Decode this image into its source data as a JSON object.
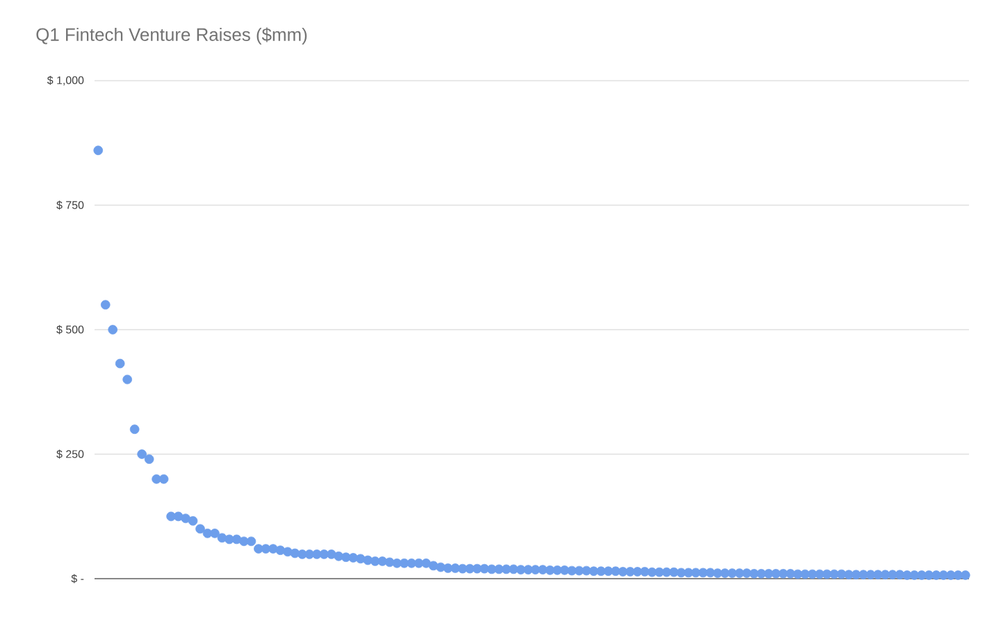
{
  "chart_data": {
    "type": "scatter",
    "title": "Q1 Fintech Venture Raises ($mm)",
    "categories": [
      null,
      null,
      null,
      null,
      null,
      null,
      null,
      null,
      null,
      null,
      null,
      null,
      null,
      null,
      null,
      null,
      null,
      null,
      null,
      null,
      null,
      null,
      null,
      null,
      null,
      null,
      null,
      null,
      null,
      null,
      null,
      null,
      null,
      null,
      null,
      null,
      null,
      null,
      null,
      null,
      null,
      null,
      null,
      null,
      null,
      null,
      null,
      null,
      null,
      null,
      null,
      null,
      null,
      null,
      null,
      null,
      null,
      null,
      null,
      null,
      null,
      null,
      null,
      null,
      null,
      null,
      null,
      null,
      null,
      null,
      null,
      null,
      null,
      null,
      null,
      null,
      null,
      null,
      null,
      null,
      null,
      null,
      null,
      null,
      null,
      null,
      null,
      null,
      null,
      null,
      null,
      null,
      null,
      null,
      null,
      null,
      null,
      null,
      null,
      null,
      null,
      null,
      null,
      null,
      null,
      null,
      null,
      null,
      null,
      null,
      null,
      null,
      null,
      null,
      null,
      null,
      null,
      null,
      null,
      null
    ],
    "values": [
      860,
      550,
      500,
      432,
      400,
      300,
      250,
      240,
      200,
      200,
      125,
      125,
      121,
      116,
      100,
      91,
      91,
      82,
      79,
      79,
      75,
      75,
      60,
      60,
      60,
      57,
      54,
      51,
      49,
      49,
      49,
      49,
      49,
      45,
      43,
      42,
      40,
      37,
      35,
      35,
      33,
      31,
      31,
      31,
      31,
      31,
      26,
      23,
      21,
      21,
      20,
      20,
      20,
      20,
      19,
      19,
      19,
      19,
      18,
      18,
      18,
      18,
      17,
      17,
      17,
      16,
      16,
      16,
      15,
      15,
      15,
      15,
      14,
      14,
      14,
      14,
      13,
      13,
      13,
      13,
      12,
      12,
      12,
      12,
      12,
      11,
      11,
      11,
      11,
      11,
      10,
      10,
      10,
      10,
      10,
      10,
      9,
      9,
      9,
      9,
      9,
      9,
      9,
      8,
      8,
      8,
      8,
      8,
      8,
      8,
      8,
      7,
      7,
      7,
      7,
      7,
      7,
      7,
      7,
      7
    ],
    "color": "#6d9eeb",
    "marker": "circle",
    "grid": "y",
    "ylim": [
      0,
      1000
    ],
    "yticks": [
      {
        "value": 0,
        "label": "$ -"
      },
      {
        "value": 250,
        "label": "$ 250"
      },
      {
        "value": 500,
        "label": "$ 500"
      },
      {
        "value": 750,
        "label": "$ 750"
      },
      {
        "value": 1000,
        "label": "$ 1,000"
      }
    ]
  }
}
